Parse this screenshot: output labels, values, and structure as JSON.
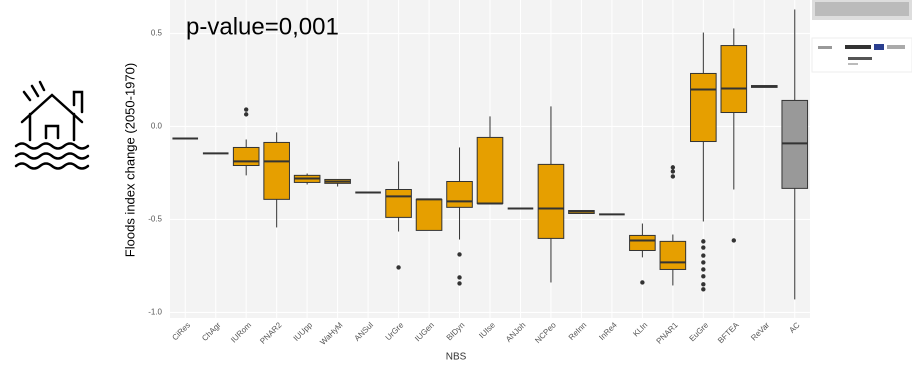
{
  "chart_data": {
    "type": "box",
    "title": "p-value=0,001",
    "ylabel": "Floods index change (2050-1970)",
    "xlabel": "NBS",
    "categories": [
      "CiRes",
      "ChAgr",
      "IURom",
      "PNAR2",
      "IUUpp",
      "WaHyM",
      "ANSul",
      "UrGre",
      "IUGen",
      "BIDyn",
      "IUIse",
      "ANJoh",
      "NCPeo",
      "ReInn",
      "InRe4",
      "KLIn",
      "PNAR1",
      "EuGre",
      "BFTEA",
      "ReVar",
      "AC"
    ],
    "boxes": [
      {
        "min": -0.065,
        "q1": -0.065,
        "median": -0.065,
        "q3": -0.065,
        "max": -0.065,
        "color": "#e69f00"
      },
      {
        "min": -0.145,
        "q1": -0.145,
        "median": -0.145,
        "q3": -0.145,
        "max": -0.145,
        "color": "#e69f00"
      },
      {
        "min": -0.263,
        "q1": -0.21,
        "median": -0.188,
        "q3": -0.113,
        "max": -0.07,
        "outliers": [
          0.091,
          0.065
        ],
        "color": "#e69f00"
      },
      {
        "min": -0.543,
        "q1": -0.392,
        "median": -0.188,
        "q3": -0.086,
        "max": -0.032,
        "color": "#e69f00"
      },
      {
        "min": -0.312,
        "q1": -0.301,
        "median": -0.28,
        "q3": -0.263,
        "max": -0.253,
        "color": "#e69f00"
      },
      {
        "min": -0.323,
        "q1": -0.306,
        "median": -0.296,
        "q3": -0.285,
        "max": -0.285,
        "color": "#e69f00"
      },
      {
        "min": -0.355,
        "q1": -0.355,
        "median": -0.355,
        "q3": -0.355,
        "max": -0.355,
        "color": "#e69f00"
      },
      {
        "min": -0.565,
        "q1": -0.489,
        "median": -0.376,
        "q3": -0.339,
        "max": -0.188,
        "outliers": [
          -0.758
        ],
        "color": "#e69f00"
      },
      {
        "min": -0.559,
        "q1": -0.559,
        "median": -0.392,
        "q3": -0.392,
        "max": -0.392,
        "color": "#e69f00"
      },
      {
        "min": -0.608,
        "q1": -0.435,
        "median": -0.403,
        "q3": -0.296,
        "max": -0.113,
        "outliers": [
          -0.688,
          -0.812,
          -0.844
        ],
        "color": "#e69f00"
      },
      {
        "min": -0.414,
        "q1": -0.414,
        "median": -0.414,
        "q3": -0.059,
        "max": 0.054,
        "color": "#e69f00"
      },
      {
        "min": -0.441,
        "q1": -0.441,
        "median": -0.441,
        "q3": -0.441,
        "max": -0.441,
        "color": "#e69f00"
      },
      {
        "min": -0.839,
        "q1": -0.602,
        "median": -0.441,
        "q3": -0.204,
        "max": 0.108,
        "color": "#e69f00"
      },
      {
        "min": -0.468,
        "q1": -0.468,
        "median": -0.457,
        "q3": -0.452,
        "max": -0.452,
        "color": "#e69f00"
      },
      {
        "min": -0.473,
        "q1": -0.473,
        "median": -0.473,
        "q3": -0.473,
        "max": -0.473,
        "color": "#e69f00"
      },
      {
        "min": -0.704,
        "q1": -0.667,
        "median": -0.613,
        "q3": -0.586,
        "max": -0.522,
        "outliers": [
          -0.839
        ],
        "color": "#e69f00"
      },
      {
        "min": -0.855,
        "q1": -0.769,
        "median": -0.731,
        "q3": -0.618,
        "max": -0.581,
        "outliers": [
          -0.22,
          -0.242,
          -0.269
        ],
        "color": "#e69f00"
      },
      {
        "min": -0.511,
        "q1": -0.081,
        "median": 0.199,
        "q3": 0.285,
        "max": 0.505,
        "outliers": [
          -0.618,
          -0.651,
          -0.694,
          -0.731,
          -0.769,
          -0.806,
          -0.849,
          -0.876
        ],
        "color": "#e69f00"
      },
      {
        "min": -0.339,
        "q1": 0.075,
        "median": 0.204,
        "q3": 0.435,
        "max": 0.527,
        "outliers": [
          -0.613
        ],
        "color": "#e69f00"
      },
      {
        "min": 0.21,
        "q1": 0.21,
        "median": 0.215,
        "q3": 0.22,
        "max": 0.22,
        "color": "#e69f00"
      },
      {
        "min": -0.93,
        "q1": -0.333,
        "median": -0.091,
        "q3": 0.14,
        "max": 0.629,
        "color": "#999999"
      }
    ],
    "ylim": [
      -1.03,
      0.68
    ],
    "yticks": [
      0.5,
      {
        "value": 0,
        "label": "0.0"
      },
      -0.5,
      {
        "value": -1,
        "label": "-1.0"
      }
    ],
    "grid": true
  }
}
